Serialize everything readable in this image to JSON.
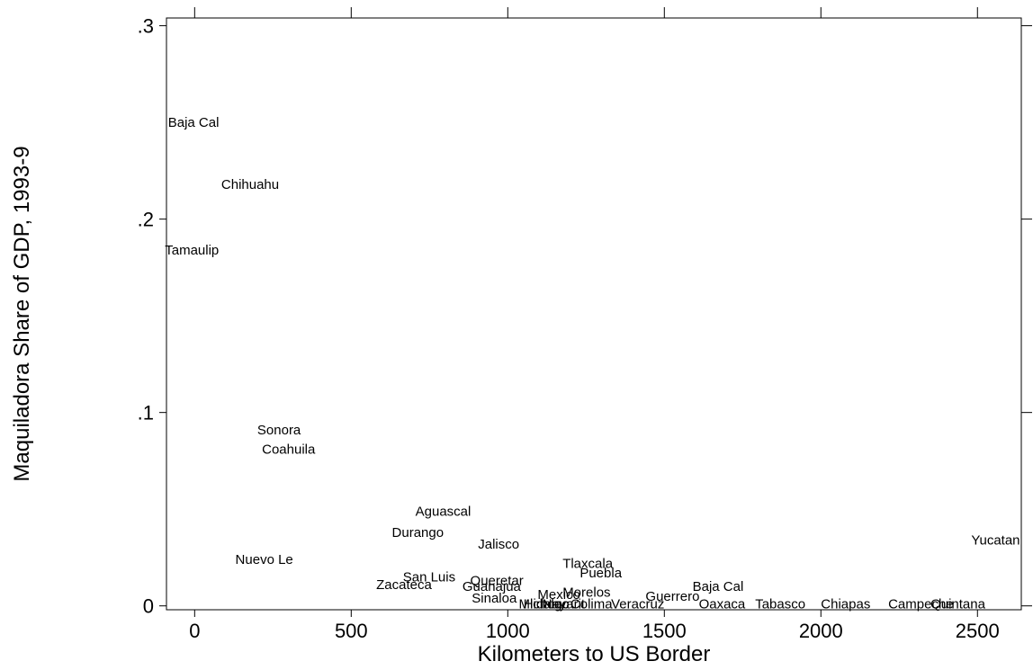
{
  "chart_data": {
    "type": "scatter",
    "marker": "label-only",
    "xlabel": "Kilometers to US Border",
    "ylabel": "Maquiladora Share of GDP, 1993-9",
    "xlim": [
      -90,
      2640
    ],
    "ylim": [
      -0.002,
      0.304
    ],
    "x_ticks": [
      0,
      500,
      1000,
      1500,
      2000,
      2500
    ],
    "x_tick_labels": [
      "0",
      "500",
      "1000",
      "1500",
      "2000",
      "2500"
    ],
    "y_ticks": [
      0,
      0.1,
      0.2,
      0.3
    ],
    "y_tick_labels": [
      "0",
      ".1",
      ".2",
      ".3"
    ],
    "points": [
      {
        "label": "Baja Cal",
        "x": -85,
        "y": 0.25
      },
      {
        "label": "Chihuahu",
        "x": 85,
        "y": 0.218
      },
      {
        "label": "Tamaulip",
        "x": -95,
        "y": 0.184
      },
      {
        "label": "Sonora",
        "x": 200,
        "y": 0.091
      },
      {
        "label": "Coahuila",
        "x": 215,
        "y": 0.081
      },
      {
        "label": "Aguascal",
        "x": 705,
        "y": 0.049
      },
      {
        "label": "Durango",
        "x": 630,
        "y": 0.038
      },
      {
        "label": "Jalisco",
        "x": 905,
        "y": 0.032
      },
      {
        "label": "Nuevo Le",
        "x": 130,
        "y": 0.024
      },
      {
        "label": "Tlaxcala",
        "x": 1175,
        "y": 0.022
      },
      {
        "label": "Puebla",
        "x": 1230,
        "y": 0.017
      },
      {
        "label": "San Luis",
        "x": 665,
        "y": 0.015
      },
      {
        "label": "Queretar",
        "x": 880,
        "y": 0.013
      },
      {
        "label": "Zacateca",
        "x": 580,
        "y": 0.011
      },
      {
        "label": "Guanajua",
        "x": 855,
        "y": 0.01
      },
      {
        "label": "Baja Cal",
        "x": 1590,
        "y": 0.01
      },
      {
        "label": "Morelos",
        "x": 1175,
        "y": 0.007
      },
      {
        "label": "Mexico",
        "x": 1095,
        "y": 0.006
      },
      {
        "label": "Guerrero",
        "x": 1440,
        "y": 0.005
      },
      {
        "label": "Sinaloa",
        "x": 885,
        "y": 0.004
      },
      {
        "label": "Hidalgo",
        "x": 1050,
        "y": 0.001
      },
      {
        "label": "Michoac",
        "x": 1035,
        "y": 0.001
      },
      {
        "label": "Nayarit",
        "x": 1110,
        "y": 0.001
      },
      {
        "label": "Colima",
        "x": 1200,
        "y": 0.001
      },
      {
        "label": "Veracruz",
        "x": 1330,
        "y": 0.001
      },
      {
        "label": "Oaxaca",
        "x": 1610,
        "y": 0.001
      },
      {
        "label": "Tabasco",
        "x": 1790,
        "y": 0.001
      },
      {
        "label": "Chiapas",
        "x": 2000,
        "y": 0.001
      },
      {
        "label": "Campeche",
        "x": 2215,
        "y": 0.001
      },
      {
        "label": "Quintana",
        "x": 2350,
        "y": 0.001
      },
      {
        "label": "Yucatan",
        "x": 2480,
        "y": 0.034
      }
    ]
  }
}
